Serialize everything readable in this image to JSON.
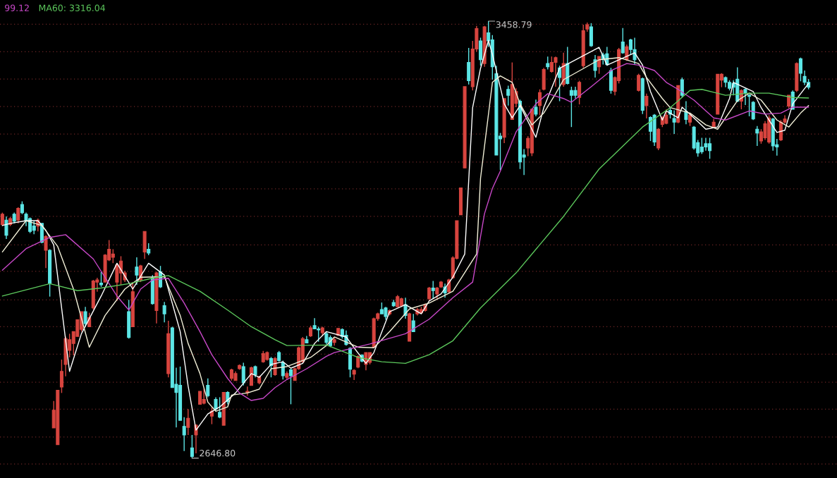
{
  "chart_data": {
    "type": "candlestick",
    "categories": [
      null,
      null,
      null,
      null,
      null,
      null,
      null,
      null,
      null,
      null,
      null,
      null,
      null,
      null,
      null,
      null,
      null,
      null,
      null,
      null,
      null,
      null,
      null,
      null,
      null,
      null,
      null,
      null,
      null,
      null,
      null,
      null,
      null,
      null,
      null,
      null,
      null,
      null,
      null,
      null,
      null,
      null,
      null,
      null,
      null,
      null,
      null,
      null,
      null,
      null,
      null,
      null,
      null,
      null,
      null,
      null,
      null,
      null,
      null,
      null,
      null,
      null,
      null,
      null,
      null,
      null,
      null,
      null,
      null,
      null,
      null,
      null,
      null,
      null,
      null,
      null,
      null,
      null,
      null,
      null,
      null,
      null,
      null,
      null,
      null,
      null,
      null,
      null,
      null,
      null,
      null,
      null,
      null,
      null,
      null,
      null,
      null,
      null,
      null,
      null,
      null,
      null,
      null,
      null,
      null,
      null,
      null,
      null,
      null,
      null,
      null,
      null,
      null,
      null,
      null,
      null,
      null,
      null,
      null,
      null,
      null,
      null,
      null,
      null,
      null,
      null,
      null,
      null,
      null,
      null,
      null,
      null,
      null,
      null,
      null,
      null,
      null,
      null,
      null,
      null,
      null,
      null,
      null,
      null,
      null,
      null,
      null,
      null,
      null,
      null,
      null,
      null,
      null,
      null,
      null,
      null,
      null,
      null,
      null,
      null,
      null,
      null,
      null,
      null,
      null,
      null,
      null,
      null,
      null,
      null,
      null,
      null,
      null,
      null,
      null,
      null,
      null,
      null,
      null,
      null,
      null,
      null,
      null,
      null,
      null,
      null,
      null,
      null,
      null,
      null,
      null,
      null,
      null,
      null,
      null,
      null,
      null,
      null,
      null,
      null,
      null,
      null,
      null,
      null,
      null
    ],
    "ohlc": [
      [
        3081,
        3103,
        3078,
        3100
      ],
      [
        3089,
        3096,
        3054,
        3061
      ],
      [
        3081,
        3095,
        3078,
        3092
      ],
      [
        3100,
        3103,
        3083,
        3087
      ],
      [
        3089,
        3113,
        3083,
        3111
      ],
      [
        3118,
        3124,
        3100,
        3103
      ],
      [
        3100,
        3103,
        3078,
        3087
      ],
      [
        3092,
        3094,
        3065,
        3068
      ],
      [
        3078,
        3087,
        3063,
        3070
      ],
      [
        3078,
        3092,
        3068,
        3089
      ],
      [
        3083,
        3083,
        3046,
        3048
      ],
      [
        3033,
        3061,
        3000,
        3059
      ],
      [
        3033,
        3035,
        2947,
        2972
      ],
      [
        2703,
        2753,
        2703,
        2736
      ],
      [
        2672,
        2773,
        2672,
        2773
      ],
      [
        2779,
        2830,
        2768,
        2808
      ],
      [
        2821,
        2873,
        2799,
        2869
      ],
      [
        2847,
        2878,
        2834,
        2867
      ],
      [
        2860,
        2882,
        2838,
        2882
      ],
      [
        2873,
        2904,
        2873,
        2904
      ],
      [
        2886,
        2919,
        2882,
        2919
      ],
      [
        2919,
        2928,
        2891,
        2897
      ],
      [
        2891,
        2917,
        2891,
        2908
      ],
      [
        2926,
        2978,
        2923,
        2976
      ],
      [
        2974,
        2982,
        2956,
        2978
      ],
      [
        2972,
        2993,
        2965,
        2969
      ],
      [
        2974,
        3026,
        2974,
        3024
      ],
      [
        3015,
        3052,
        3013,
        3035
      ],
      [
        3020,
        3035,
        3009,
        3026
      ],
      [
        2974,
        3009,
        2939,
        3006
      ],
      [
        2991,
        3022,
        2969,
        3013
      ],
      [
        2978,
        2995,
        2974,
        2991
      ],
      [
        2919,
        2941,
        2869,
        2871
      ],
      [
        2891,
        2974,
        2891,
        2956
      ],
      [
        3002,
        3020,
        2969,
        2987
      ],
      [
        2978,
        3006,
        2974,
        3004
      ],
      [
        3030,
        3068,
        3017,
        3068
      ],
      [
        3035,
        3046,
        3024,
        3028
      ],
      [
        2982,
        2987,
        2932,
        2934
      ],
      [
        2921,
        2993,
        2897,
        2991
      ],
      [
        2993,
        3004,
        2963,
        2965
      ],
      [
        2930,
        2937,
        2899,
        2915
      ],
      [
        2804,
        2902,
        2797,
        2878
      ],
      [
        2889,
        2891,
        2778,
        2778
      ],
      [
        2784,
        2815,
        2704,
        2769
      ],
      [
        2782,
        2817,
        2717,
        2717
      ],
      [
        2706,
        2723,
        2660,
        2690
      ],
      [
        2704,
        2738,
        2690,
        2721
      ],
      [
        2666,
        2690,
        2646.8,
        2650
      ],
      [
        2690,
        2710,
        2656,
        2708
      ],
      [
        2747,
        2771,
        2747,
        2771
      ],
      [
        2749,
        2776,
        2747,
        2756
      ],
      [
        2782,
        2795,
        2760,
        2763
      ],
      [
        2725,
        2741,
        2710,
        2734
      ],
      [
        2756,
        2760,
        2734,
        2738
      ],
      [
        2732,
        2760,
        2721,
        2723
      ],
      [
        2708,
        2769,
        2708,
        2769
      ],
      [
        2769,
        2771,
        2747,
        2752
      ],
      [
        2795,
        2813,
        2791,
        2811
      ],
      [
        2791,
        2808,
        2791,
        2804
      ],
      [
        2813,
        2821,
        2811,
        2819
      ],
      [
        2817,
        2824,
        2782,
        2787
      ],
      [
        2769,
        2780,
        2763,
        2771
      ],
      [
        2782,
        2817,
        2782,
        2815
      ],
      [
        2817,
        2819,
        2797,
        2802
      ],
      [
        2787,
        2800,
        2784,
        2798
      ],
      [
        2826,
        2846,
        2824,
        2841
      ],
      [
        2830,
        2845,
        2828,
        2843
      ],
      [
        2832,
        2835,
        2797,
        2819
      ],
      [
        2802,
        2835,
        2800,
        2832
      ],
      [
        2843,
        2846,
        2826,
        2828
      ],
      [
        2824,
        2828,
        2793,
        2800
      ],
      [
        2797,
        2808,
        2793,
        2804
      ],
      [
        2811,
        2813,
        2747,
        2800
      ],
      [
        2791,
        2815,
        2791,
        2813
      ],
      [
        2813,
        2854,
        2811,
        2852
      ],
      [
        2826,
        2872,
        2824,
        2869
      ],
      [
        2867,
        2874,
        2861,
        2861
      ],
      [
        2874,
        2893,
        2872,
        2889
      ],
      [
        2893,
        2907,
        2887,
        2887
      ],
      [
        2887,
        2891,
        2863,
        2885
      ],
      [
        2880,
        2891,
        2874,
        2889
      ],
      [
        2878,
        2882,
        2858,
        2862
      ],
      [
        2871,
        2875,
        2853,
        2856
      ],
      [
        2862,
        2871,
        2856,
        2867
      ],
      [
        2875,
        2888,
        2875,
        2888
      ],
      [
        2886,
        2888,
        2869,
        2873
      ],
      [
        2875,
        2884,
        2856,
        2858
      ],
      [
        2851,
        2853,
        2797,
        2812
      ],
      [
        2803,
        2812,
        2792,
        2810
      ],
      [
        2816,
        2838,
        2814,
        2836
      ],
      [
        2838,
        2840,
        2825,
        2827
      ],
      [
        2821,
        2843,
        2810,
        2843
      ],
      [
        2825,
        2843,
        2821,
        2843
      ],
      [
        2853,
        2908,
        2851,
        2906
      ],
      [
        2906,
        2917,
        2902,
        2915
      ],
      [
        2923,
        2936,
        2915,
        2915
      ],
      [
        2926,
        2928,
        2904,
        2910
      ],
      [
        2915,
        2923,
        2912,
        2921
      ],
      [
        2936,
        2941,
        2928,
        2930
      ],
      [
        2928,
        2950,
        2928,
        2947
      ],
      [
        2930,
        2945,
        2928,
        2943
      ],
      [
        2932,
        2945,
        2906,
        2912
      ],
      [
        2864,
        2917,
        2864,
        2915
      ],
      [
        2902,
        2915,
        2882,
        2882
      ],
      [
        2915,
        2926,
        2912,
        2923
      ],
      [
        2917,
        2928,
        2915,
        2923
      ],
      [
        2921,
        2934,
        2919,
        2932
      ],
      [
        2943,
        2965,
        2939,
        2963
      ],
      [
        2963,
        2976,
        2943,
        2958
      ],
      [
        2952,
        2965,
        2943,
        2963
      ],
      [
        2965,
        2976,
        2963,
        2974
      ],
      [
        2965,
        2971,
        2945,
        2954
      ],
      [
        2956,
        2980,
        2954,
        2978
      ],
      [
        2982,
        3022,
        2980,
        3019
      ],
      [
        3018,
        3088,
        3016,
        3088
      ],
      [
        3099,
        3149,
        3099,
        3149
      ],
      [
        3186,
        3337,
        3186,
        3337
      ],
      [
        3382,
        3409,
        3341,
        3348
      ],
      [
        3337,
        3422,
        3330,
        3407
      ],
      [
        3407,
        3450,
        3402,
        3445
      ],
      [
        3422,
        3428,
        3376,
        3387
      ],
      [
        3380,
        3450,
        3374,
        3448
      ],
      [
        3437,
        3458.79,
        3411,
        3422
      ],
      [
        3424,
        3433,
        3350,
        3374
      ],
      [
        3361,
        3376,
        3210,
        3210
      ],
      [
        3245,
        3251,
        3182,
        3240
      ],
      [
        3243,
        3315,
        3232,
        3315
      ],
      [
        3332,
        3339,
        3302,
        3321
      ],
      [
        3276,
        3382,
        3276,
        3341
      ],
      [
        3306,
        3334,
        3299,
        3328
      ],
      [
        3310,
        3313,
        3184,
        3197
      ],
      [
        3210,
        3221,
        3173,
        3206
      ],
      [
        3223,
        3245,
        3208,
        3241
      ],
      [
        3214,
        3297,
        3208,
        3295
      ],
      [
        3299,
        3313,
        3282,
        3286
      ],
      [
        3302,
        3332,
        3284,
        3326
      ],
      [
        3332,
        3372,
        3330,
        3369
      ],
      [
        3380,
        3393,
        3369,
        3374
      ],
      [
        3365,
        3393,
        3363,
        3382
      ],
      [
        3382,
        3393,
        3337,
        3391
      ],
      [
        3372,
        3376,
        3310,
        3354
      ],
      [
        3341,
        3400,
        3337,
        3380
      ],
      [
        3380,
        3411,
        3341,
        3343
      ],
      [
        3330,
        3337,
        3262,
        3321
      ],
      [
        3330,
        3337,
        3315,
        3321
      ],
      [
        3317,
        3348,
        3304,
        3345
      ],
      [
        3376,
        3452,
        3372,
        3441
      ],
      [
        3444,
        3456,
        3439,
        3452
      ],
      [
        3448,
        3455,
        3411,
        3413
      ],
      [
        3387,
        3396,
        3354,
        3367
      ],
      [
        3374,
        3393,
        3361,
        3393
      ],
      [
        3396,
        3400,
        3378,
        3389
      ],
      [
        3398,
        3411,
        3376,
        3378
      ],
      [
        3367,
        3372,
        3324,
        3330
      ],
      [
        3328,
        3356,
        3321,
        3354
      ],
      [
        3348,
        3409,
        3343,
        3406
      ],
      [
        3420,
        3446,
        3398,
        3400
      ],
      [
        3387,
        3415,
        3385,
        3411
      ],
      [
        3424,
        3426,
        3396,
        3406
      ],
      [
        3406,
        3428,
        3378,
        3387
      ],
      [
        3330,
        3361,
        3328,
        3358
      ],
      [
        3352,
        3354,
        3286,
        3293
      ],
      [
        3302,
        3324,
        3278,
        3319
      ],
      [
        3280,
        3282,
        3236,
        3254
      ],
      [
        3284,
        3286,
        3227,
        3234
      ],
      [
        3223,
        3260,
        3219,
        3258
      ],
      [
        3267,
        3282,
        3262,
        3280
      ],
      [
        3269,
        3295,
        3267,
        3284
      ],
      [
        3293,
        3299,
        3278,
        3286
      ],
      [
        3278,
        3293,
        3249,
        3271
      ],
      [
        3271,
        3339,
        3269,
        3339
      ],
      [
        3350,
        3354,
        3317,
        3321
      ],
      [
        3291,
        3310,
        3267,
        3276
      ],
      [
        3271,
        3288,
        3264,
        3284
      ],
      [
        3262,
        3264,
        3220,
        3223
      ],
      [
        3233,
        3238,
        3207,
        3214
      ],
      [
        3225,
        3242,
        3212,
        3216
      ],
      [
        3231,
        3242,
        3218,
        3225
      ],
      [
        3231,
        3242,
        3203,
        3218
      ],
      [
        3262,
        3277,
        3260,
        3271
      ],
      [
        3286,
        3360,
        3286,
        3360
      ],
      [
        3349,
        3362,
        3336,
        3360
      ],
      [
        3354,
        3356,
        3336,
        3345
      ],
      [
        3345,
        3349,
        3330,
        3334
      ],
      [
        3343,
        3349,
        3321,
        3336
      ],
      [
        3351,
        3373,
        3308,
        3310
      ],
      [
        3310,
        3332,
        3295,
        3330
      ],
      [
        3332,
        3334,
        3303,
        3325
      ],
      [
        3321,
        3323,
        3282,
        3319
      ],
      [
        3308,
        3310,
        3275,
        3277
      ],
      [
        3258,
        3264,
        3227,
        3251
      ],
      [
        3236,
        3258,
        3231,
        3253
      ],
      [
        3242,
        3273,
        3238,
        3268
      ],
      [
        3234,
        3284,
        3231,
        3279
      ],
      [
        3277,
        3279,
        3218,
        3227
      ],
      [
        3229,
        3240,
        3209,
        3225
      ],
      [
        3238,
        3275,
        3236,
        3271
      ],
      [
        3271,
        3284,
        3268,
        3277
      ],
      [
        3301,
        3321,
        3297,
        3321
      ],
      [
        3327,
        3330,
        3295,
        3295
      ],
      [
        3330,
        3382,
        3327,
        3380
      ],
      [
        3389,
        3391,
        3347,
        3362
      ],
      [
        3356,
        3367,
        3340,
        3345
      ],
      [
        3345,
        3351,
        3332,
        3336
      ]
    ],
    "colors": [
      "#d8453f",
      "#5ce6e6",
      "#d8453f",
      "#5ce6e6",
      "#d8453f",
      "#5ce6e6",
      "#5ce6e6",
      "#5ce6e6",
      "#5ce6e6",
      "#d8453f",
      "#5ce6e6",
      "#d8453f",
      "#5ce6e6",
      "#d8453f",
      "#d8453f",
      "#d8453f",
      "#d8453f",
      "#d8453f",
      "#d8453f",
      "#d8453f",
      "#d8453f",
      "#5ce6e6",
      "#d8453f",
      "#d8453f",
      "#d8453f",
      "#5ce6e6",
      "#d8453f",
      "#d8453f",
      "#d8453f",
      "#d8453f",
      "#d8453f",
      "#d8453f",
      "#5ce6e6",
      "#d8453f",
      "#5ce6e6",
      "#d8453f",
      "#d8453f",
      "#5ce6e6",
      "#5ce6e6",
      "#d8453f",
      "#5ce6e6",
      "#5ce6e6",
      "#d8453f",
      "#5ce6e6",
      "#5ce6e6",
      "#5ce6e6",
      "#5ce6e6",
      "#d8453f",
      "#5ce6e6",
      "#d8453f",
      "#d8453f",
      "#d8453f",
      "#5ce6e6",
      "#d8453f",
      "#5ce6e6",
      "#5ce6e6",
      "#d8453f",
      "#5ce6e6",
      "#d8453f",
      "#d8453f",
      "#d8453f",
      "#5ce6e6",
      "#d8453f",
      "#d8453f",
      "#5ce6e6",
      "#d8453f",
      "#d8453f",
      "#d8453f",
      "#5ce6e6",
      "#d8453f",
      "#5ce6e6",
      "#5ce6e6",
      "#d8453f",
      "#5ce6e6",
      "#d8453f",
      "#d8453f",
      "#d8453f",
      "#5ce6e6",
      "#d8453f",
      "#5ce6e6",
      "#5ce6e6",
      "#d8453f",
      "#5ce6e6",
      "#5ce6e6",
      "#d8453f",
      "#d8453f",
      "#5ce6e6",
      "#5ce6e6",
      "#5ce6e6",
      "#d8453f",
      "#d8453f",
      "#5ce6e6",
      "#d8453f",
      "#d8453f",
      "#d8453f",
      "#d8453f",
      "#5ce6e6",
      "#5ce6e6",
      "#d8453f",
      "#5ce6e6",
      "#d8453f",
      "#d8453f",
      "#5ce6e6",
      "#d8453f",
      "#5ce6e6",
      "#d8453f",
      "#d8453f",
      "#d8453f",
      "#d8453f",
      "#5ce6e6",
      "#d8453f",
      "#d8453f",
      "#5ce6e6",
      "#d8453f",
      "#d8453f",
      "#d8453f",
      "#d8453f",
      "#d8453f",
      "#5ce6e6",
      "#d8453f",
      "#d8453f",
      "#5ce6e6",
      "#d8453f",
      "#5ce6e6",
      "#5ce6e6",
      "#5ce6e6",
      "#5ce6e6",
      "#d8453f",
      "#5ce6e6",
      "#d8453f",
      "#d8453f",
      "#5ce6e6",
      "#5ce6e6",
      "#d8453f",
      "#d8453f",
      "#5ce6e6",
      "#d8453f",
      "#d8453f",
      "#5ce6e6",
      "#d8453f",
      "#d8453f",
      "#5ce6e6",
      "#d8453f",
      "#5ce6e6",
      "#5ce6e6",
      "#5ce6e6",
      "#d8453f",
      "#d8453f",
      "#d8453f",
      "#5ce6e6",
      "#5ce6e6",
      "#d8453f",
      "#5ce6e6",
      "#5ce6e6",
      "#5ce6e6",
      "#d8453f",
      "#d8453f",
      "#5ce6e6",
      "#d8453f",
      "#5ce6e6",
      "#5ce6e6",
      "#d8453f",
      "#5ce6e6",
      "#d8453f",
      "#5ce6e6",
      "#5ce6e6",
      "#d8453f",
      "#d8453f",
      "#d8453f",
      "#5ce6e6",
      "#5ce6e6",
      "#d8453f",
      "#5ce6e6",
      "#5ce6e6",
      "#d8453f",
      "#5ce6e6",
      "#5ce6e6",
      "#5ce6e6",
      "#5ce6e6",
      "#5ce6e6",
      "#d8453f",
      "#d8453f",
      "#d8453f",
      "#5ce6e6",
      "#5ce6e6",
      "#5ce6e6",
      "#5ce6e6",
      "#d8453f",
      "#5ce6e6",
      "#5ce6e6",
      "#5ce6e6",
      "#5ce6e6",
      "#d8453f",
      "#d8453f",
      "#d8453f",
      "#5ce6e6",
      "#5ce6e6",
      "#d8453f",
      "#d8453f",
      "#d8453f",
      "#5ce6e6",
      "#d8453f",
      "#5ce6e6",
      "#5ce6e6",
      "#5ce6e6"
    ],
    "series": [
      {
        "type": "line",
        "color": "#ffffff",
        "values": [
          3079,
          null,
          3083,
          null,
          null,
          null,
          3088,
          null,
          null,
          3088,
          null,
          3070,
          null,
          3043,
          null,
          null,
          null,
          2808,
          null,
          null,
          2878,
          null,
          null,
          null,
          null,
          2948,
          null,
          null,
          null,
          3009,
          null,
          null,
          null,
          2961,
          null,
          null,
          null,
          3009,
          null,
          null,
          null,
          2987,
          null,
          null,
          null,
          2882,
          null,
          2781,
          null,
          2699,
          null,
          null,
          2729,
          null,
          null,
          2742,
          null,
          null,
          null,
          2768,
          null,
          null,
          null,
          2804,
          null,
          2797,
          null,
          null,
          2821,
          null,
          null,
          2826,
          null,
          2814,
          null,
          null,
          2823,
          null,
          null,
          2860,
          null,
          null,
          2882,
          null,
          null,
          null,
          null,
          2872,
          null,
          2852,
          null,
          null,
          2823,
          null,
          2843,
          null,
          null,
          null,
          2919,
          null,
          null,
          null,
          2932,
          null,
          null,
          null,
          2915,
          null,
          2939,
          null,
          null,
          2952,
          null,
          null,
          2983,
          null,
          null,
          3026,
          null,
          3298,
          null,
          3371,
          null,
          3423,
          3397,
          null,
          null,
          3305,
          null,
          3279,
          null,
          3302,
          null,
          null,
          null,
          3243,
          null,
          3298,
          null,
          null,
          null,
          3371,
          null,
          null,
          null,
          null,
          null,
          null,
          null,
          null,
          null,
          3410,
          null,
          3377,
          null,
          null,
          null,
          null,
          null,
          null,
          3400,
          null,
          3377,
          null,
          3328,
          null,
          null,
          3275,
          3292,
          null,
          null,
          3279,
          3299,
          null,
          null,
          3279,
          null,
          null,
          3258,
          null,
          null,
          3262,
          null,
          null,
          3315,
          3345,
          null,
          null,
          null,
          null,
          3328,
          null,
          3298,
          null,
          null,
          null,
          3252,
          null,
          3256,
          null,
          3305,
          null,
          null,
          null,
          3343
        ]
      },
      {
        "type": "line",
        "color": "#f2f0d8",
        "values": [
          3030,
          null,
          null,
          null,
          null,
          null,
          3088,
          null,
          null,
          null,
          3079,
          null,
          null,
          null,
          3040,
          null,
          null,
          null,
          2961,
          null,
          null,
          null,
          2853,
          null,
          null,
          null,
          2912,
          null,
          null,
          null,
          null,
          2961,
          null,
          null,
          null,
          2983,
          null,
          null,
          null,
          null,
          null,
          2984,
          null,
          null,
          null,
          2912,
          null,
          2860,
          null,
          null,
          2804,
          null,
          2751,
          null,
          2734,
          null,
          null,
          2742,
          2764,
          null,
          null,
          null,
          2768,
          null,
          null,
          2775,
          null,
          null,
          2813,
          null,
          null,
          null,
          2817,
          null,
          null,
          null,
          null,
          null,
          2834,
          null,
          null,
          null,
          2856,
          null,
          2872,
          null,
          null,
          null,
          null,
          null,
          2853,
          null,
          null,
          null,
          2852,
          null,
          null,
          null,
          2882,
          null,
          null,
          null,
          null,
          2924,
          null,
          null,
          null,
          null,
          2935,
          null,
          null,
          null,
          null,
          null,
          2957,
          null,
          null,
          null,
          null,
          null,
          3026,
          3167,
          null,
          null,
          3345,
          null,
          3357,
          null,
          null,
          3345,
          null,
          3305,
          null,
          null,
          3266,
          null,
          null,
          3288,
          null,
          null,
          3324,
          null,
          3350,
          null,
          null,
          null,
          null,
          null,
          null,
          null,
          null,
          3387,
          null,
          null,
          null,
          null,
          3391,
          null,
          null,
          null,
          null,
          3380,
          null,
          3354,
          null,
          null,
          null,
          3315,
          null,
          3298,
          null,
          null,
          null,
          null,
          3288,
          null,
          null,
          null,
          3266,
          null,
          null,
          3258,
          null,
          null,
          null,
          null,
          3311,
          null,
          null,
          3325,
          null,
          null,
          3312,
          null,
          null,
          null,
          3275,
          null,
          null,
          3262,
          null,
          null,
          3288,
          null,
          3302
        ]
      },
      {
        "type": "line",
        "name": "99.12",
        "color": "#c848c8",
        "values": [
          2996,
          null,
          null,
          null,
          null,
          null,
          3036,
          null,
          null,
          null,
          null,
          null,
          3057,
          null,
          null,
          null,
          3062,
          null,
          null,
          null,
          null,
          null,
          null,
          3017,
          null,
          null,
          null,
          null,
          null,
          2948,
          null,
          null,
          2922,
          null,
          null,
          2961,
          null,
          null,
          2978,
          null,
          null,
          null,
          2981,
          null,
          null,
          null,
          2935,
          null,
          null,
          null,
          2882,
          null,
          null,
          2839,
          null,
          null,
          null,
          2795,
          null,
          null,
          2768,
          null,
          null,
          2754,
          null,
          null,
          2758,
          null,
          null,
          2778,
          null,
          null,
          2793,
          null,
          null,
          null,
          null,
          2813,
          null,
          null,
          null,
          null,
          2836,
          null,
          2843,
          null,
          null,
          null,
          null,
          null,
          null,
          null,
          null,
          2859,
          null,
          null,
          null,
          null,
          null,
          null,
          null,
          null,
          2878,
          null,
          null,
          null,
          null,
          null,
          2905,
          null,
          null,
          null,
          null,
          null,
          2945,
          null,
          null,
          null,
          null,
          2974,
          null,
          null,
          3101,
          null,
          3148,
          null,
          3180,
          null,
          null,
          null,
          3253,
          null,
          null,
          null,
          null,
          3305,
          null,
          null,
          3324,
          null,
          null,
          null,
          3315,
          null,
          3308,
          null,
          null,
          null,
          null,
          3337,
          null,
          null,
          null,
          null,
          3367,
          null,
          null,
          null,
          3380,
          null,
          null,
          3377,
          null,
          null,
          null,
          3367,
          null,
          null,
          3345,
          null,
          null,
          3332,
          null,
          null,
          null,
          3312,
          null,
          null,
          null,
          null,
          3279,
          null,
          null,
          3275,
          null,
          null,
          null,
          null,
          null,
          3292,
          null,
          null,
          null,
          3286,
          null,
          null,
          null,
          3288,
          null,
          null,
          3299,
          null,
          null,
          null,
          3299
        ]
      },
      {
        "type": "line",
        "name": "MA60: 3316.04",
        "color": "#5cc85c",
        "values": [
          2948,
          null,
          null,
          null,
          null,
          null,
          null,
          null,
          null,
          null,
          null,
          null,
          2971,
          null,
          null,
          null,
          null,
          null,
          null,
          2958,
          null,
          null,
          null,
          null,
          null,
          2963,
          null,
          null,
          null,
          null,
          null,
          null,
          2971,
          null,
          null,
          null,
          null,
          null,
          null,
          2983,
          null,
          null,
          2986,
          null,
          null,
          null,
          null,
          null,
          null,
          null,
          2957,
          null,
          null,
          null,
          null,
          null,
          null,
          2922,
          null,
          null,
          null,
          null,
          null,
          2891,
          null,
          null,
          null,
          null,
          null,
          2867,
          null,
          null,
          2856,
          null,
          null,
          null,
          null,
          null,
          null,
          null,
          null,
          null,
          2857,
          null,
          null,
          null,
          null,
          null,
          null,
          null,
          2834,
          null,
          null,
          null,
          null,
          null,
          2826,
          null,
          null,
          null,
          null,
          null,
          2823,
          null,
          null,
          null,
          null,
          null,
          2839,
          null,
          null,
          null,
          null,
          null,
          2865,
          null,
          null,
          null,
          null,
          null,
          null,
          2926,
          null,
          null,
          null,
          null,
          null,
          null,
          null,
          null,
          2991,
          null,
          null,
          null,
          null,
          null,
          null,
          null,
          null,
          null,
          null,
          null,
          3096,
          null,
          null,
          null,
          null,
          null,
          null,
          null,
          null,
          3184,
          null,
          null,
          null,
          null,
          null,
          null,
          null,
          null,
          null,
          null,
          3262,
          null,
          null,
          null,
          null,
          null,
          null,
          3298,
          null,
          null,
          null,
          null,
          3330,
          null,
          null,
          3332,
          null,
          null,
          null,
          null,
          null,
          3321,
          null,
          null,
          null,
          null,
          null,
          3325,
          null,
          null,
          null,
          null,
          3325,
          null,
          null,
          null,
          null,
          null,
          3317,
          null,
          null,
          null,
          3316
        ]
      }
    ],
    "annotations": [
      "3458.79",
      "2646.80"
    ],
    "ylim": [
      2610,
      3498
    ],
    "yticks": [
      {
        "value": 3453,
        "label": null
      },
      {
        "value": 3402,
        "label": null
      },
      {
        "value": 3351,
        "label": null
      },
      {
        "value": 3300,
        "label": null
      },
      {
        "value": 3249,
        "label": null
      },
      {
        "value": 3197,
        "label": null
      },
      {
        "value": 3147,
        "label": null
      },
      {
        "value": 3096,
        "label": null
      },
      {
        "value": 3043,
        "label": null
      },
      {
        "value": 2994,
        "label": null
      },
      {
        "value": 2941,
        "label": null
      },
      {
        "value": 2891,
        "label": null
      },
      {
        "value": 2840,
        "label": null
      },
      {
        "value": 2788,
        "label": null
      },
      {
        "value": 2738,
        "label": null
      },
      {
        "value": 2686,
        "label": null
      },
      {
        "value": 2636,
        "label": null
      }
    ],
    "grid": "y",
    "legend": "top left"
  }
}
